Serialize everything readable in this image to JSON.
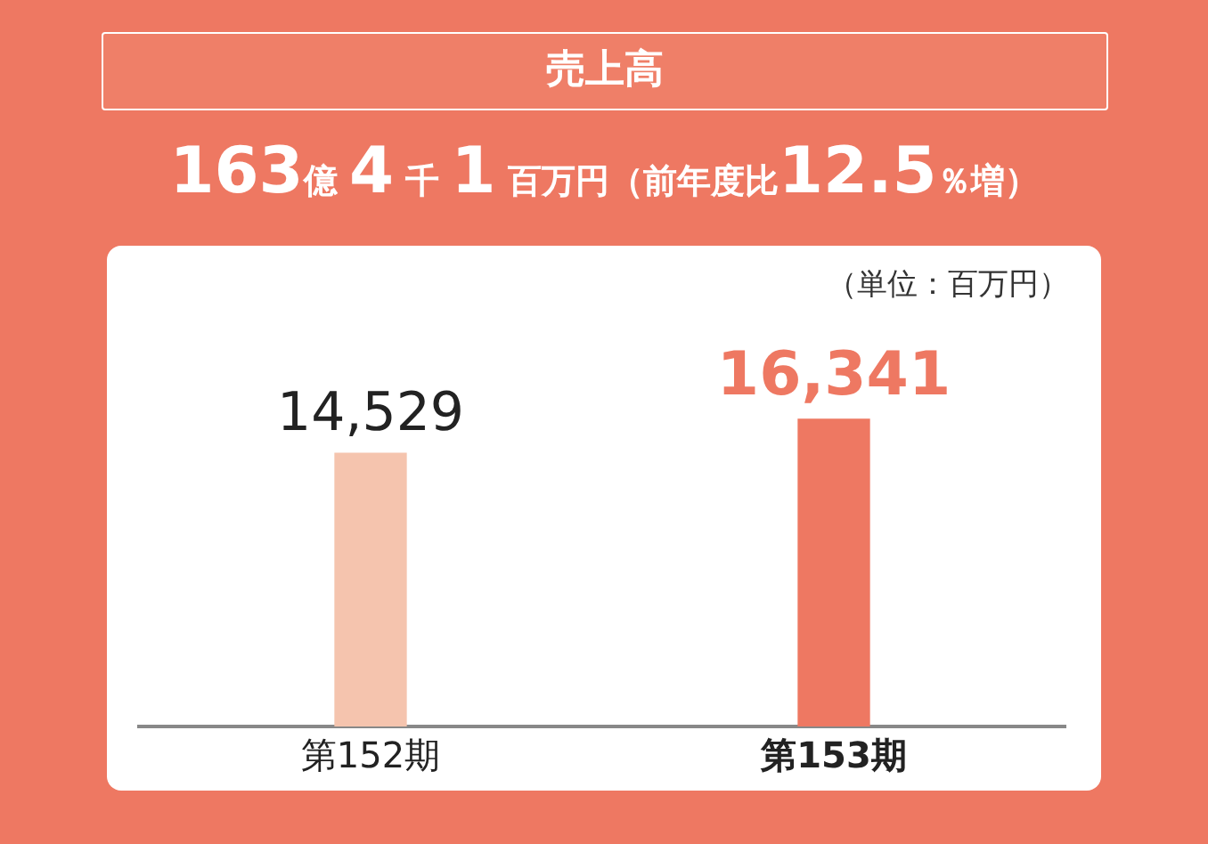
{
  "chart_data": {
    "type": "bar",
    "title": "売上高",
    "subtitle": "163億 4 千 1 百万円（前年度比12.5％増）",
    "annotations": [
      "（単位：百万円）"
    ],
    "categories": [
      "第152期",
      "第153期"
    ],
    "values": [
      14529,
      16341
    ],
    "colors": [
      "#f5c4ae",
      "#ee7862"
    ],
    "value_labels": [
      "14,529",
      "16,341"
    ],
    "grid": false,
    "legend": false,
    "tick_labels": "x"
  }
}
